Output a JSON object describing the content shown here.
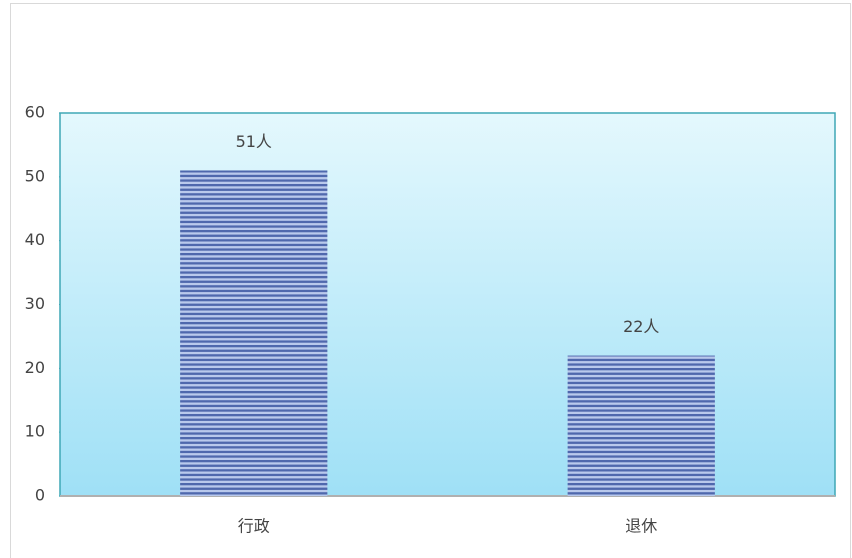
{
  "chart_data": {
    "type": "bar",
    "categories": [
      "行政",
      "退休"
    ],
    "values": [
      51,
      22
    ],
    "value_labels": [
      "51人",
      "22人"
    ],
    "color": "#4f68ad",
    "ylim": [
      0,
      60
    ],
    "yticks": [
      0,
      10,
      20,
      30,
      40,
      50,
      60
    ]
  }
}
